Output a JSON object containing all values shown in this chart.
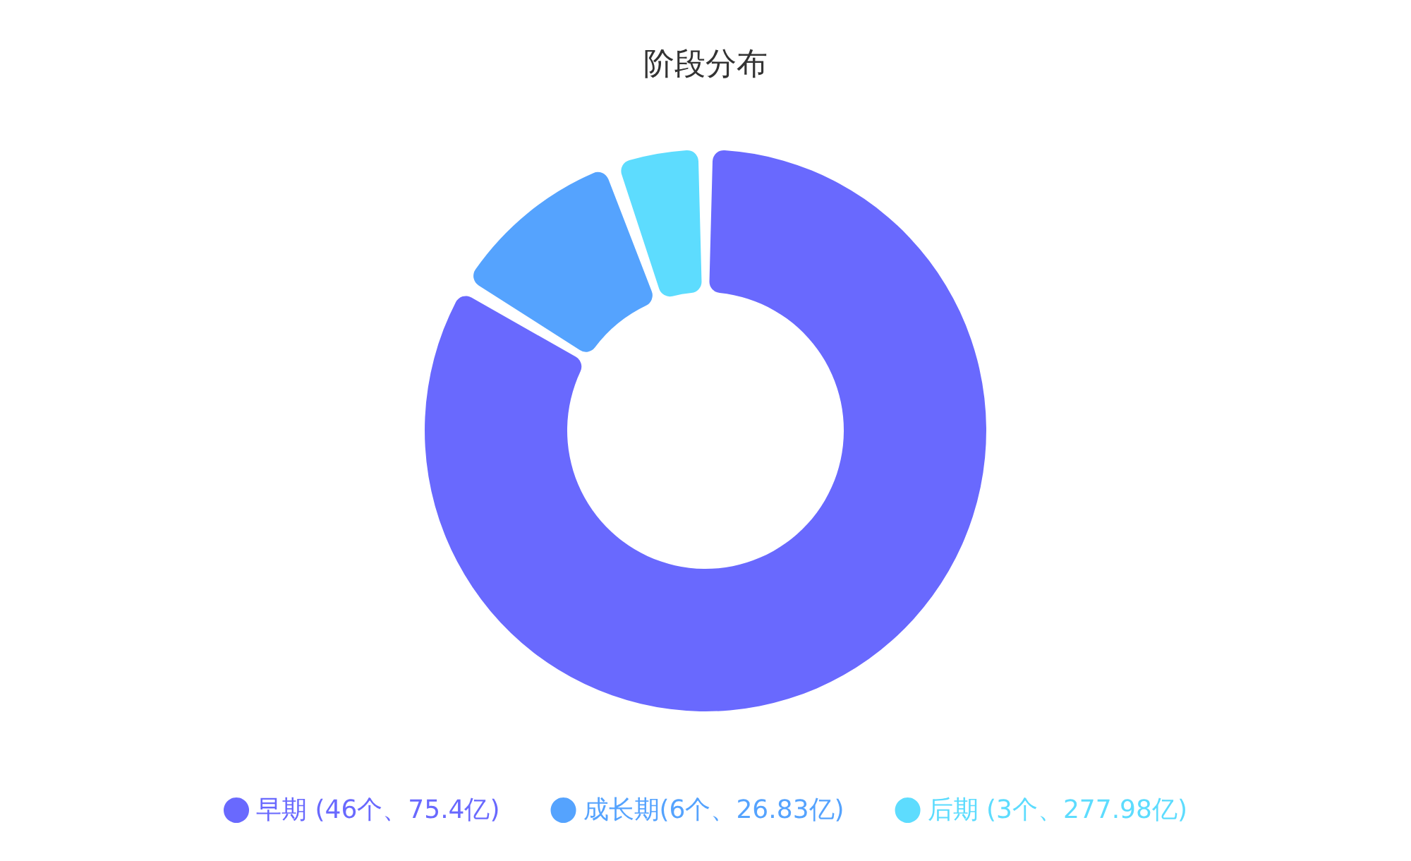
{
  "chart_data": {
    "type": "donut",
    "title": "阶段分布",
    "categories": [
      "早期 (46个、75.4亿)",
      "成长期(6个、26.83亿)",
      "后期 (3个、277.98亿)"
    ],
    "values": [
      46,
      6,
      3
    ],
    "colors": [
      "#6969fe",
      "#55a3fe",
      "#5ddcfe"
    ],
    "legend": "bottom"
  }
}
